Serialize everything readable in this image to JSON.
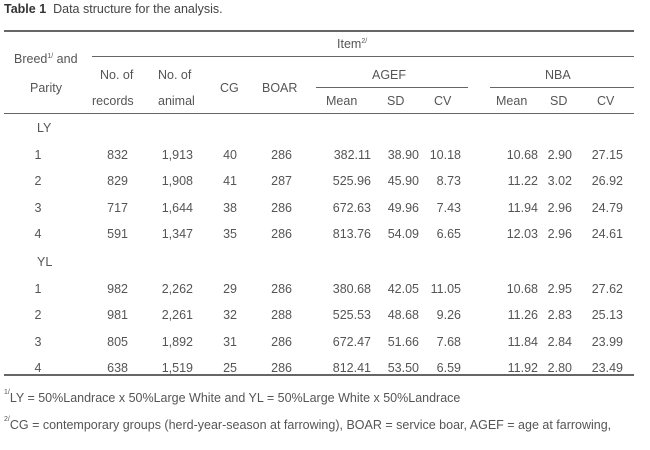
{
  "table": {
    "number": "Table 1",
    "title": "Data structure for the analysis.",
    "headers": {
      "breed": "Breed",
      "breed_sup": "1/",
      "and": " and",
      "parity": "Parity",
      "item": "Item",
      "item_sup": "2/",
      "no_of": "No. of",
      "records": "records",
      "no_of_2": "No. of",
      "animal": "animal",
      "cg": "CG",
      "boar": "BOAR",
      "agef": "AGEF",
      "nba": "NBA",
      "mean": "Mean",
      "sd": "SD",
      "cv": "CV"
    },
    "groups": [
      {
        "name": "LY",
        "rows": [
          [
            "1",
            "832",
            "1,913",
            "40",
            "286",
            "382.11",
            "38.90",
            "10.18",
            "10.68",
            "2.90",
            "27.15"
          ],
          [
            "2",
            "829",
            "1,908",
            "41",
            "287",
            "525.96",
            "45.90",
            "8.73",
            "11.22",
            "3.02",
            "26.92"
          ],
          [
            "3",
            "717",
            "1,644",
            "38",
            "286",
            "672.63",
            "49.96",
            "7.43",
            "11.94",
            "2.96",
            "24.79"
          ],
          [
            "4",
            "591",
            "1,347",
            "35",
            "286",
            "813.76",
            "54.09",
            "6.65",
            "12.03",
            "2.96",
            "24.61"
          ]
        ]
      },
      {
        "name": "YL",
        "rows": [
          [
            "1",
            "982",
            "2,262",
            "29",
            "286",
            "380.68",
            "42.05",
            "11.05",
            "10.68",
            "2.95",
            "27.62"
          ],
          [
            "2",
            "981",
            "2,261",
            "32",
            "288",
            "525.53",
            "48.68",
            "9.26",
            "11.26",
            "2.83",
            "25.13"
          ],
          [
            "3",
            "805",
            "1,892",
            "31",
            "286",
            "672.47",
            "51.66",
            "7.68",
            "11.84",
            "2.84",
            "23.99"
          ],
          [
            "4",
            "638",
            "1,519",
            "25",
            "286",
            "812.41",
            "53.50",
            "6.59",
            "11.92",
            "2.80",
            "23.49"
          ]
        ]
      }
    ],
    "footnotes": [
      {
        "sup": "1/",
        "text": "LY = 50%Landrace x 50%Large White and YL = 50%Large White x 50%Landrace"
      },
      {
        "sup": "2/",
        "text": "CG = contemporary groups (herd-year-season at farrowing), BOAR = service boar, AGEF = age at farrowing,"
      }
    ]
  }
}
